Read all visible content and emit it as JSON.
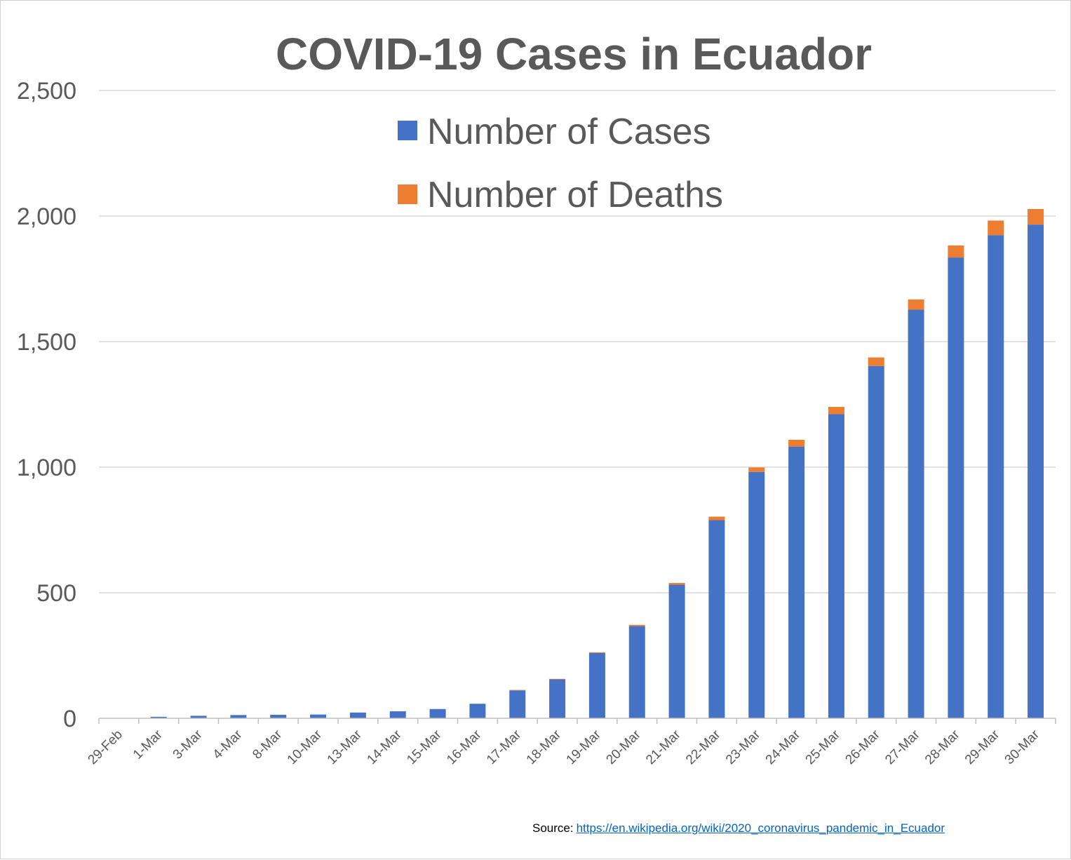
{
  "chart_data": {
    "type": "bar",
    "stacked": true,
    "title": "COVID-19 Cases in Ecuador",
    "xlabel": "",
    "ylabel": "",
    "ylim": [
      0,
      2500
    ],
    "yticks": [
      0,
      500,
      1000,
      1500,
      2000,
      2500
    ],
    "ytick_labels": [
      "0",
      "500",
      "1,000",
      "1,500",
      "2,000",
      "2,500"
    ],
    "grid": true,
    "legend_position": "top-center",
    "categories": [
      "29-Feb",
      "1-Mar",
      "3-Mar",
      "4-Mar",
      "8-Mar",
      "10-Mar",
      "13-Mar",
      "14-Mar",
      "15-Mar",
      "16-Mar",
      "17-Mar",
      "18-Mar",
      "19-Mar",
      "20-Mar",
      "21-Mar",
      "22-Mar",
      "23-Mar",
      "24-Mar",
      "25-Mar",
      "26-Mar",
      "27-Mar",
      "28-Mar",
      "29-Mar",
      "30-Mar"
    ],
    "series": [
      {
        "name": "Number of Cases",
        "color": "#4472c4",
        "values": [
          1,
          6,
          10,
          13,
          14,
          15,
          23,
          28,
          37,
          58,
          111,
          155,
          260,
          367,
          532,
          789,
          981,
          1082,
          1211,
          1403,
          1627,
          1835,
          1924,
          1966
        ]
      },
      {
        "name": "Number of Deaths",
        "color": "#ed7d31",
        "values": [
          0,
          0,
          0,
          0,
          0,
          0,
          0,
          0,
          0,
          0,
          2,
          2,
          3,
          5,
          7,
          14,
          18,
          27,
          29,
          34,
          41,
          48,
          58,
          62
        ]
      }
    ]
  },
  "source": {
    "label": "Source:",
    "link_text": "https://en.wikipedia.org/wiki/2020_coronavirus_pandemic_in_Ecuador"
  }
}
